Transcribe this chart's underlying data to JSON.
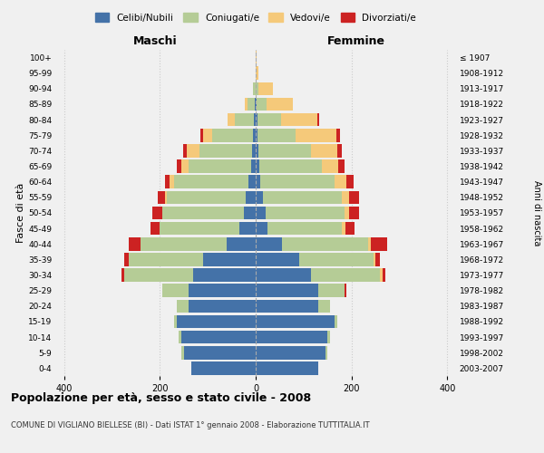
{
  "age_groups": [
    "0-4",
    "5-9",
    "10-14",
    "15-19",
    "20-24",
    "25-29",
    "30-34",
    "35-39",
    "40-44",
    "45-49",
    "50-54",
    "55-59",
    "60-64",
    "65-69",
    "70-74",
    "75-79",
    "80-84",
    "85-89",
    "90-94",
    "95-99",
    "100+"
  ],
  "birth_years": [
    "2003-2007",
    "1998-2002",
    "1993-1997",
    "1988-1992",
    "1983-1987",
    "1978-1982",
    "1973-1977",
    "1968-1972",
    "1963-1967",
    "1958-1962",
    "1953-1957",
    "1948-1952",
    "1943-1947",
    "1938-1942",
    "1933-1937",
    "1928-1932",
    "1923-1927",
    "1918-1922",
    "1913-1917",
    "1908-1912",
    "≤ 1907"
  ],
  "colors": {
    "celibe": "#4472a8",
    "coniugato": "#b5cc96",
    "vedovo": "#f5c97a",
    "divorziato": "#cc2222"
  },
  "maschi": {
    "celibe": [
      135,
      150,
      155,
      165,
      140,
      140,
      130,
      110,
      60,
      35,
      25,
      20,
      15,
      10,
      8,
      5,
      3,
      2,
      0,
      0,
      0
    ],
    "coniugato": [
      0,
      5,
      5,
      5,
      25,
      55,
      145,
      155,
      180,
      165,
      170,
      165,
      155,
      130,
      110,
      85,
      40,
      15,
      5,
      0,
      0
    ],
    "vedovo": [
      0,
      0,
      0,
      0,
      0,
      0,
      0,
      0,
      0,
      0,
      0,
      5,
      10,
      15,
      25,
      20,
      15,
      5,
      0,
      0,
      0
    ],
    "divorziato": [
      0,
      0,
      0,
      0,
      0,
      0,
      5,
      10,
      25,
      20,
      20,
      15,
      10,
      10,
      8,
      5,
      0,
      0,
      0,
      0,
      0
    ]
  },
  "femmine": {
    "nubile": [
      130,
      145,
      150,
      165,
      130,
      130,
      115,
      90,
      55,
      25,
      20,
      15,
      10,
      8,
      5,
      3,
      3,
      2,
      0,
      0,
      0
    ],
    "coniugata": [
      0,
      5,
      5,
      5,
      25,
      55,
      145,
      155,
      180,
      155,
      165,
      165,
      155,
      130,
      110,
      80,
      50,
      20,
      5,
      0,
      0
    ],
    "vedova": [
      0,
      0,
      0,
      0,
      0,
      0,
      5,
      5,
      5,
      8,
      10,
      15,
      25,
      35,
      55,
      85,
      75,
      55,
      30,
      5,
      2
    ],
    "divorziata": [
      0,
      0,
      0,
      0,
      0,
      5,
      5,
      10,
      35,
      18,
      20,
      20,
      15,
      12,
      10,
      8,
      5,
      0,
      0,
      0,
      0
    ]
  },
  "xlim": 420,
  "title": "Popolazione per età, sesso e stato civile - 2008",
  "subtitle": "COMUNE DI VIGLIANO BIELLESE (BI) - Dati ISTAT 1° gennaio 2008 - Elaborazione TUTTITALIA.IT",
  "ylabel_left": "Fasce di età",
  "ylabel_right": "Anni di nascita",
  "xlabel_left": "Maschi",
  "xlabel_right": "Femmine",
  "legend_labels": [
    "Celibi/Nubili",
    "Coniugati/e",
    "Vedovi/e",
    "Divorziati/e"
  ],
  "legend_colors": [
    "#4472a8",
    "#b5cc96",
    "#f5c97a",
    "#cc2222"
  ],
  "bg_color": "#f0f0f0",
  "grid_color": "#cccccc"
}
